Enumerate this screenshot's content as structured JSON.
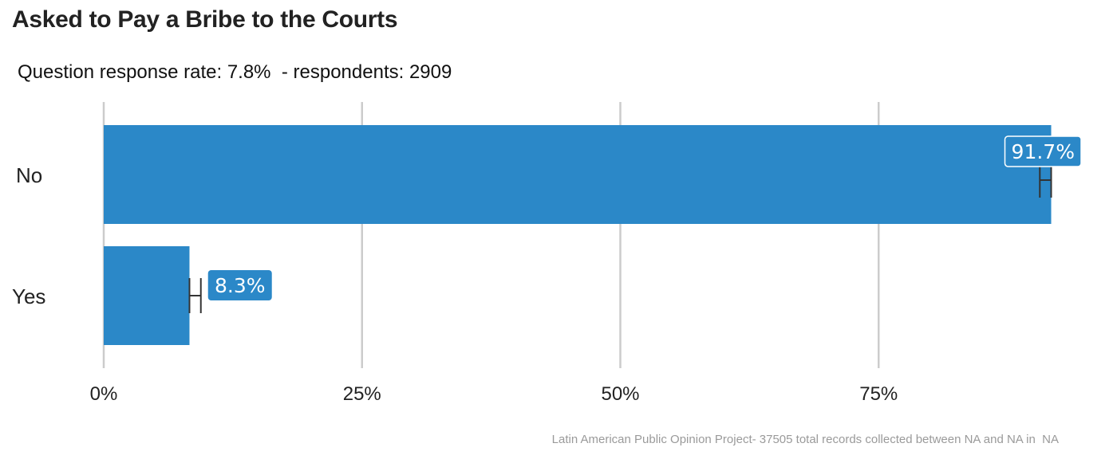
{
  "title": "Asked to Pay a Bribe to the Courts",
  "subtitle": "Question response rate: 7.8%  - respondents: 2909",
  "caption": "Latin American Public Opinion Project- 37505 total records collected between NA and NA in  NA",
  "colors": {
    "bar": "#2b88c8",
    "grid": "#cccccc",
    "error_bar": "#333333",
    "label_box": "#2b88c8",
    "label_text": "#ffffff"
  },
  "chart_data": {
    "type": "bar",
    "orientation": "horizontal",
    "categories": [
      "No",
      "Yes"
    ],
    "values": [
      91.7,
      8.3
    ],
    "value_labels": [
      "91.7%",
      "8.3%"
    ],
    "error_bars": [
      [
        90.6,
        91.7
      ],
      [
        8.3,
        9.4
      ]
    ],
    "x_ticks": [
      0,
      25,
      50,
      75
    ],
    "x_tick_labels": [
      "0%",
      "25%",
      "50%",
      "75%"
    ],
    "xlim": [
      0,
      100
    ],
    "xlabel": "",
    "ylabel": "",
    "grid": "vertical major gridlines",
    "legend": "none"
  }
}
